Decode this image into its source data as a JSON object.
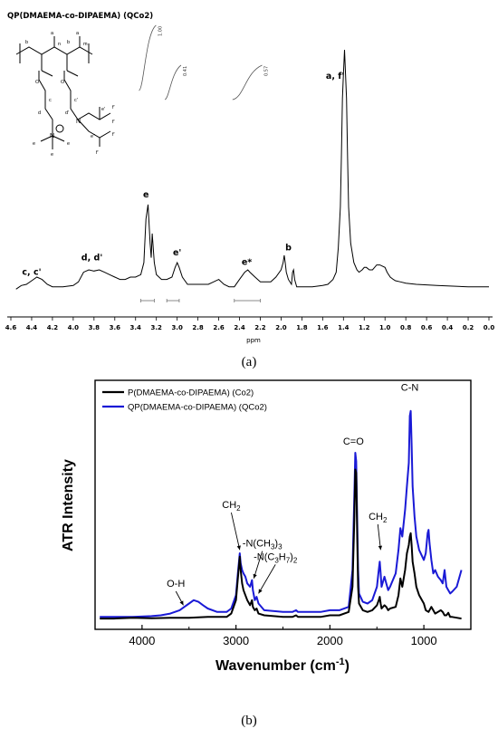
{
  "chart_data": [
    {
      "type": "line",
      "panel_label": "(a)",
      "title": "QP(DMAEMA-co-DIPAEMA) (QCo2)",
      "xlabel": "ppm",
      "ylabel": "",
      "xlim": [
        4.6,
        0.0
      ],
      "x_reversed": true,
      "x_ticks": [
        "4.6",
        "4.4",
        "4.2",
        "4.0",
        "3.8",
        "3.6",
        "3.4",
        "3.2",
        "3.0",
        "2.8",
        "2.6",
        "2.4",
        "2.2",
        "2.0",
        "1.8",
        "1.6",
        "1.4",
        "1.2",
        "1.0",
        "0.8",
        "0.6",
        "0.4",
        "0.2",
        "0.0"
      ],
      "grid": false,
      "series": [
        {
          "color": "#000000",
          "x": [
            4.55,
            4.5,
            4.45,
            4.4,
            4.35,
            4.3,
            4.25,
            4.2,
            4.1,
            4.0,
            3.95,
            3.9,
            3.85,
            3.8,
            3.75,
            3.7,
            3.65,
            3.6,
            3.55,
            3.5,
            3.45,
            3.4,
            3.35,
            3.32,
            3.3,
            3.28,
            3.26,
            3.25,
            3.24,
            3.22,
            3.2,
            3.15,
            3.1,
            3.05,
            3.02,
            3.0,
            2.98,
            2.95,
            2.9,
            2.8,
            2.7,
            2.65,
            2.6,
            2.55,
            2.5,
            2.45,
            2.4,
            2.35,
            2.32,
            2.3,
            2.25,
            2.2,
            2.1,
            2.05,
            2.0,
            1.98,
            1.97,
            1.96,
            1.95,
            1.93,
            1.9,
            1.89,
            1.88,
            1.87,
            1.85,
            1.8,
            1.7,
            1.6,
            1.55,
            1.5,
            1.47,
            1.45,
            1.43,
            1.42,
            1.41,
            1.4,
            1.39,
            1.38,
            1.37,
            1.36,
            1.35,
            1.33,
            1.3,
            1.27,
            1.25,
            1.22,
            1.2,
            1.18,
            1.15,
            1.12,
            1.1,
            1.08,
            1.05,
            1.0,
            0.98,
            0.95,
            0.92,
            0.9,
            0.85,
            0.8,
            0.7,
            0.5,
            0.2,
            0.0
          ],
          "y": [
            0.01,
            0.025,
            0.03,
            0.045,
            0.06,
            0.05,
            0.03,
            0.02,
            0.02,
            0.025,
            0.04,
            0.08,
            0.09,
            0.085,
            0.09,
            0.08,
            0.07,
            0.06,
            0.05,
            0.05,
            0.06,
            0.06,
            0.07,
            0.12,
            0.3,
            0.36,
            0.2,
            0.14,
            0.24,
            0.12,
            0.07,
            0.05,
            0.05,
            0.06,
            0.1,
            0.12,
            0.1,
            0.06,
            0.03,
            0.03,
            0.03,
            0.04,
            0.05,
            0.03,
            0.02,
            0.02,
            0.05,
            0.08,
            0.09,
            0.08,
            0.06,
            0.04,
            0.04,
            0.06,
            0.09,
            0.12,
            0.15,
            0.12,
            0.08,
            0.05,
            0.03,
            0.08,
            0.09,
            0.05,
            0.02,
            0.02,
            0.02,
            0.025,
            0.03,
            0.05,
            0.08,
            0.18,
            0.35,
            0.55,
            0.8,
            0.9,
            1.0,
            0.9,
            0.8,
            0.55,
            0.35,
            0.2,
            0.12,
            0.09,
            0.08,
            0.09,
            0.1,
            0.1,
            0.09,
            0.09,
            0.1,
            0.11,
            0.11,
            0.1,
            0.08,
            0.06,
            0.05,
            0.045,
            0.04,
            0.035,
            0.03,
            0.025,
            0.02,
            0.02
          ]
        }
      ],
      "peak_labels": [
        {
          "text": "c, c'",
          "x": 4.4,
          "y": 0.07
        },
        {
          "text": "d, d'",
          "x": 3.82,
          "y": 0.13
        },
        {
          "text": "e",
          "x": 3.3,
          "y": 0.39
        },
        {
          "text": "e'",
          "x": 3.0,
          "y": 0.15
        },
        {
          "text": "e*",
          "x": 2.33,
          "y": 0.11
        },
        {
          "text": "b",
          "x": 1.93,
          "y": 0.17
        },
        {
          "text": "a, f'",
          "x": 1.48,
          "y": 0.88
        }
      ],
      "integrals": [
        {
          "value": "1.00",
          "from": 3.35,
          "to": 3.22
        },
        {
          "value": "0.41",
          "from": 3.1,
          "to": 2.98
        },
        {
          "value": "0.57",
          "from": 2.45,
          "to": 2.2
        }
      ],
      "structure_labels": {
        "b": "b",
        "a": "a",
        "n": "n",
        "m": "m",
        "c": "c",
        "c_prime": "c'",
        "d": "d",
        "d_prime": "d'",
        "n_plus": "N",
        "n_atom": "N",
        "e": "e",
        "e_prime": "e'",
        "e_double": "e''",
        "f_prime": "f'",
        "o": "O"
      }
    },
    {
      "type": "line",
      "panel_label": "(b)",
      "title": "",
      "xlabel": "Wavenumber (cm",
      "xlabel_sup": "-1",
      "xlabel_end": ")",
      "ylabel": "ATR Intensity",
      "xlim": [
        4500,
        500
      ],
      "x_reversed": true,
      "x_ticks": [
        4000,
        3000,
        2000,
        1000
      ],
      "grid": false,
      "legend_position": "top-left",
      "series": [
        {
          "name": "P(DMAEMA-co-DIPAEMA) (Co2)",
          "color": "#000000",
          "x": [
            4450,
            4300,
            4100,
            3900,
            3700,
            3500,
            3400,
            3300,
            3100,
            3050,
            3000,
            2980,
            2960,
            2950,
            2935,
            2920,
            2900,
            2880,
            2850,
            2830,
            2820,
            2800,
            2780,
            2760,
            2700,
            2500,
            2400,
            2360,
            2340,
            2300,
            2100,
            2000,
            1900,
            1800,
            1760,
            1740,
            1730,
            1720,
            1710,
            1700,
            1690,
            1650,
            1600,
            1550,
            1500,
            1480,
            1470,
            1460,
            1450,
            1420,
            1400,
            1380,
            1360,
            1300,
            1270,
            1250,
            1230,
            1200,
            1180,
            1160,
            1150,
            1140,
            1130,
            1120,
            1100,
            1080,
            1050,
            1000,
            980,
            950,
            920,
            900,
            880,
            850,
            820,
            800,
            780,
            760,
            740,
            720,
            700,
            650,
            600
          ],
          "y": [
            0.01,
            0.01,
            0.015,
            0.012,
            0.015,
            0.015,
            0.018,
            0.02,
            0.02,
            0.04,
            0.12,
            0.25,
            0.38,
            0.3,
            0.22,
            0.18,
            0.15,
            0.12,
            0.09,
            0.12,
            0.08,
            0.06,
            0.07,
            0.04,
            0.03,
            0.02,
            0.02,
            0.03,
            0.02,
            0.02,
            0.02,
            0.03,
            0.03,
            0.05,
            0.2,
            0.6,
            0.9,
            0.88,
            0.5,
            0.2,
            0.1,
            0.06,
            0.05,
            0.06,
            0.09,
            0.12,
            0.14,
            0.1,
            0.07,
            0.09,
            0.08,
            0.06,
            0.07,
            0.08,
            0.15,
            0.25,
            0.2,
            0.3,
            0.4,
            0.45,
            0.5,
            0.52,
            0.45,
            0.35,
            0.28,
            0.2,
            0.15,
            0.1,
            0.06,
            0.05,
            0.08,
            0.06,
            0.04,
            0.05,
            0.06,
            0.05,
            0.03,
            0.03,
            0.045,
            0.02,
            0.02,
            0.015,
            0.01
          ]
        },
        {
          "name": "QP(DMAEMA-co-DIPAEMA) (QCo2)",
          "color": "#1a1ad6",
          "x": [
            4450,
            4300,
            4100,
            3900,
            3800,
            3700,
            3600,
            3550,
            3500,
            3450,
            3400,
            3350,
            3300,
            3200,
            3100,
            3050,
            3000,
            2980,
            2960,
            2950,
            2935,
            2920,
            2900,
            2880,
            2850,
            2830,
            2820,
            2800,
            2780,
            2760,
            2700,
            2500,
            2400,
            2360,
            2340,
            2300,
            2100,
            2000,
            1900,
            1800,
            1760,
            1740,
            1730,
            1720,
            1710,
            1700,
            1690,
            1650,
            1600,
            1550,
            1500,
            1480,
            1470,
            1460,
            1450,
            1420,
            1400,
            1380,
            1360,
            1300,
            1270,
            1250,
            1230,
            1200,
            1180,
            1160,
            1150,
            1140,
            1130,
            1120,
            1100,
            1080,
            1050,
            1000,
            980,
            960,
            950,
            940,
            920,
            900,
            880,
            850,
            820,
            800,
            780,
            760,
            740,
            720,
            700,
            650,
            600
          ],
          "y": [
            0.02,
            0.02,
            0.02,
            0.025,
            0.03,
            0.04,
            0.06,
            0.08,
            0.1,
            0.12,
            0.11,
            0.09,
            0.07,
            0.05,
            0.05,
            0.07,
            0.15,
            0.28,
            0.4,
            0.34,
            0.3,
            0.28,
            0.26,
            0.22,
            0.2,
            0.24,
            0.18,
            0.12,
            0.14,
            0.1,
            0.06,
            0.05,
            0.05,
            0.06,
            0.05,
            0.05,
            0.05,
            0.06,
            0.06,
            0.08,
            0.3,
            0.74,
            1.0,
            0.95,
            0.6,
            0.3,
            0.16,
            0.11,
            0.1,
            0.12,
            0.2,
            0.3,
            0.35,
            0.28,
            0.2,
            0.26,
            0.22,
            0.18,
            0.2,
            0.28,
            0.42,
            0.55,
            0.5,
            0.66,
            0.8,
            0.94,
            1.22,
            1.25,
            1.05,
            0.8,
            0.62,
            0.5,
            0.42,
            0.36,
            0.4,
            0.52,
            0.54,
            0.46,
            0.36,
            0.28,
            0.3,
            0.26,
            0.24,
            0.22,
            0.3,
            0.2,
            0.18,
            0.16,
            0.17,
            0.2,
            0.3
          ]
        }
      ],
      "annotations": [
        {
          "text": "O-H",
          "x": 3640,
          "y": 0.2,
          "arrow_to": [
            3560,
            0.09
          ]
        },
        {
          "text": "CH",
          "sub": "2",
          "x": 3050,
          "y": 0.67,
          "arrow_to": [
            2960,
            0.42
          ]
        },
        {
          "text": "-N(CH",
          "sub": "3",
          "tail": ")",
          "tail_sub": "3",
          "x": 2720,
          "y": 0.44,
          "arrow_to": [
            2810,
            0.25
          ]
        },
        {
          "text": "-N(C",
          "sub": "3",
          "mid": "H",
          "mid_sub": "7",
          "tail": ")",
          "tail_sub": "2",
          "x": 2580,
          "y": 0.36,
          "arrow_to": [
            2760,
            0.16
          ]
        },
        {
          "text": "C=O",
          "x": 1750,
          "y": 1.05
        },
        {
          "text": "CH",
          "sub": "2",
          "x": 1490,
          "y": 0.6,
          "arrow_to": [
            1460,
            0.42
          ]
        },
        {
          "text": "C-N",
          "x": 1150,
          "y": 1.37
        }
      ]
    }
  ]
}
